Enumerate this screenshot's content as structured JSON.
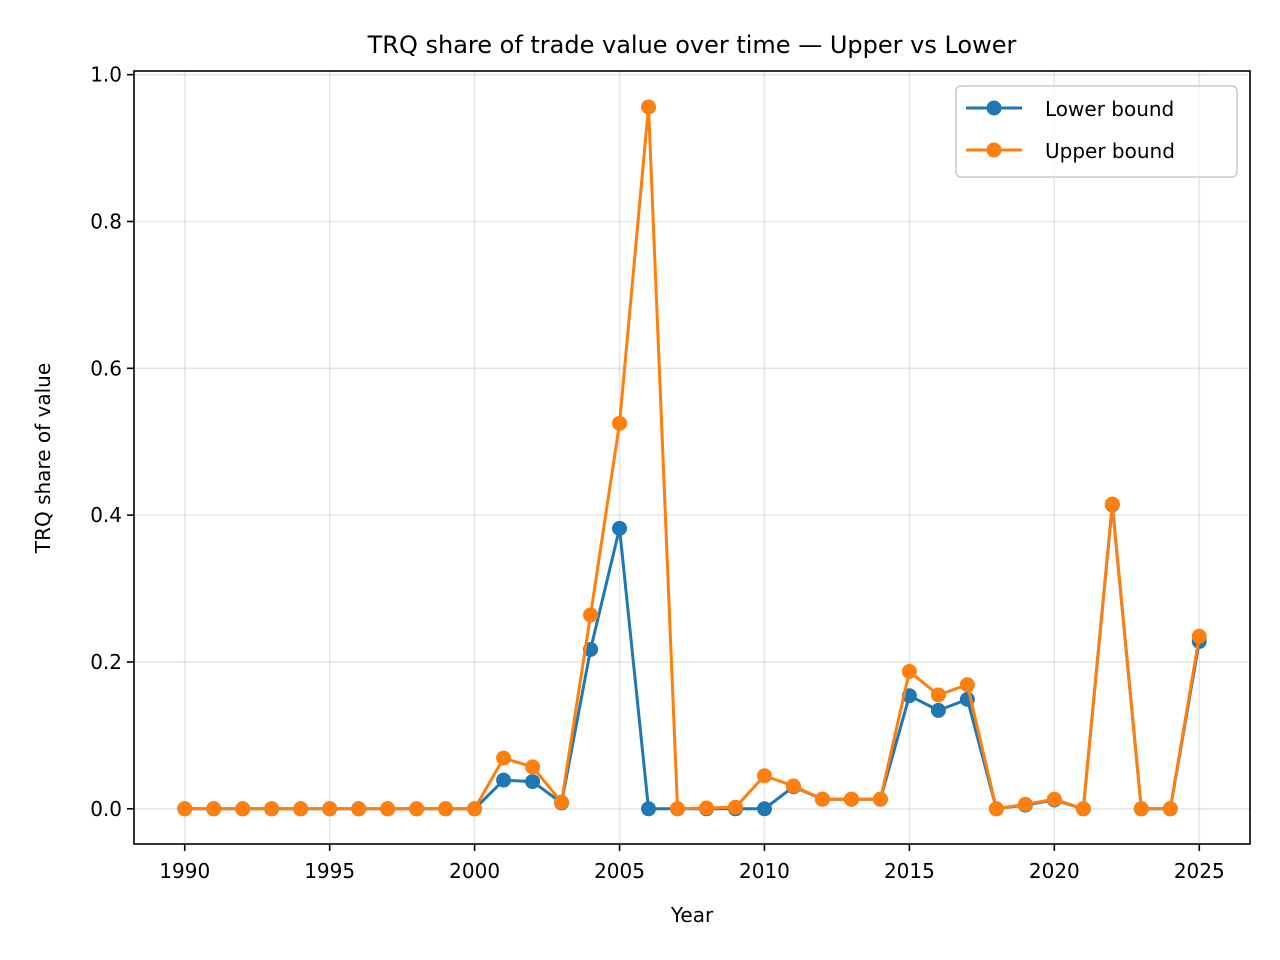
{
  "chart_data": {
    "type": "line",
    "title": "TRQ share of trade value over time — Upper vs Lower",
    "xlabel": "Year",
    "ylabel": "TRQ share of value",
    "xlim": [
      1988.25,
      2026.75
    ],
    "ylim": [
      -0.048,
      1.005
    ],
    "x_ticks": [
      1990,
      1995,
      2000,
      2005,
      2010,
      2015,
      2020,
      2025
    ],
    "x_tick_labels": [
      "1990",
      "1995",
      "2000",
      "2005",
      "2010",
      "2015",
      "2020",
      "2025"
    ],
    "y_ticks": [
      0.0,
      0.2,
      0.4,
      0.6,
      0.8,
      1.0
    ],
    "y_tick_labels": [
      "0.0",
      "0.2",
      "0.4",
      "0.6",
      "0.8",
      "1.0"
    ],
    "grid": true,
    "legend_position": "upper-right",
    "x": [
      1990,
      1991,
      1992,
      1993,
      1994,
      1995,
      1996,
      1997,
      1998,
      1999,
      2000,
      2001,
      2002,
      2003,
      2004,
      2005,
      2006,
      2007,
      2008,
      2009,
      2010,
      2011,
      2012,
      2013,
      2014,
      2015,
      2016,
      2017,
      2018,
      2019,
      2020,
      2021,
      2022,
      2023,
      2024,
      2025
    ],
    "series": [
      {
        "name": "Lower bound",
        "color": "#1f77b4",
        "values": [
          0,
          0,
          0,
          0,
          0,
          0,
          0,
          0,
          0,
          0,
          0,
          0.039,
          0.037,
          0.008,
          0.217,
          0.382,
          0,
          0,
          0,
          0,
          0,
          0.03,
          0.013,
          0.013,
          0.013,
          0.154,
          0.134,
          0.149,
          0,
          0.005,
          0.012,
          0,
          0.414,
          0,
          0,
          0.228
        ]
      },
      {
        "name": "Upper bound",
        "color": "#ff7f0e",
        "values": [
          0,
          0,
          0,
          0,
          0,
          0,
          0,
          0,
          0,
          0,
          0,
          0.069,
          0.057,
          0.009,
          0.264,
          0.525,
          0.956,
          0,
          0.001,
          0.002,
          0.045,
          0.031,
          0.013,
          0.013,
          0.013,
          0.187,
          0.155,
          0.169,
          0,
          0.006,
          0.013,
          0,
          0.415,
          0,
          0,
          0.235
        ]
      }
    ]
  }
}
